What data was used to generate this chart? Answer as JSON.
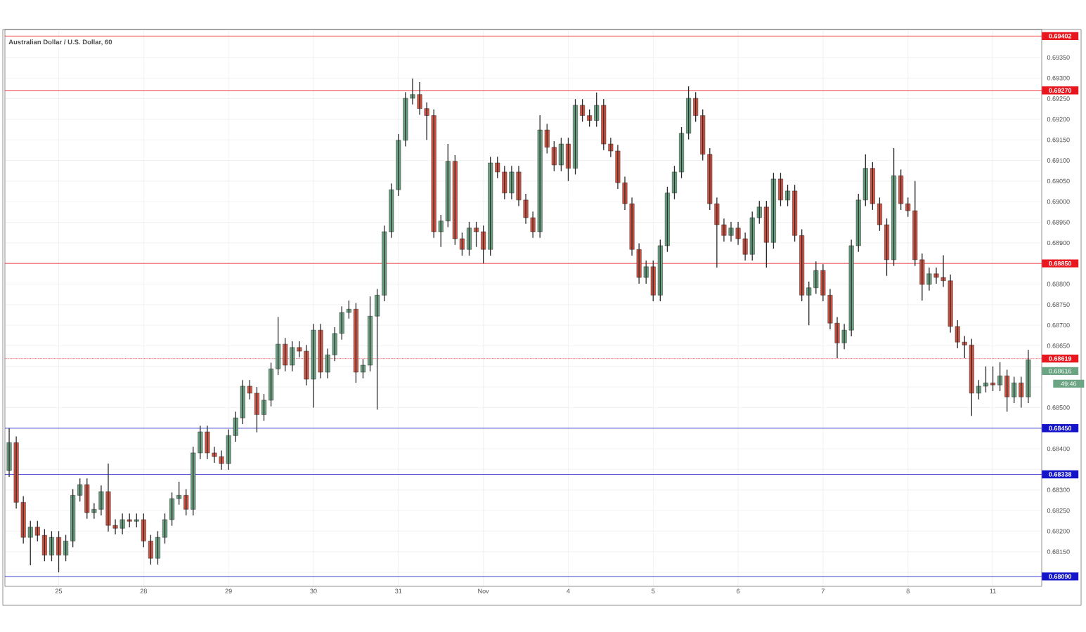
{
  "chart_data": {
    "type": "candlestick",
    "title": "Australian Dollar / U.S. Dollar, 60",
    "categories": [
      null,
      null,
      null,
      null,
      null,
      null,
      null,
      "25",
      null,
      null,
      null,
      null,
      null,
      null,
      null,
      null,
      null,
      null,
      null,
      "28",
      null,
      null,
      null,
      null,
      null,
      null,
      null,
      null,
      null,
      null,
      null,
      "29",
      null,
      null,
      null,
      null,
      null,
      null,
      null,
      null,
      null,
      null,
      null,
      "30",
      null,
      null,
      null,
      null,
      null,
      null,
      null,
      null,
      null,
      null,
      null,
      "31",
      null,
      null,
      null,
      null,
      null,
      null,
      null,
      null,
      null,
      null,
      null,
      "Nov",
      null,
      null,
      null,
      null,
      null,
      null,
      null,
      null,
      null,
      null,
      null,
      "4",
      null,
      null,
      null,
      null,
      null,
      null,
      null,
      null,
      null,
      null,
      null,
      "5",
      null,
      null,
      null,
      null,
      null,
      null,
      null,
      null,
      null,
      null,
      null,
      "6",
      null,
      null,
      null,
      null,
      null,
      null,
      null,
      null,
      null,
      null,
      null,
      "7",
      null,
      null,
      null,
      null,
      null,
      null,
      null,
      null,
      null,
      null,
      null,
      "8",
      null,
      null,
      null,
      null,
      null,
      null,
      null,
      null,
      null,
      null,
      null,
      "11",
      null,
      null,
      null,
      null,
      null
    ],
    "ohlc": [
      [
        0.68347,
        0.6845,
        0.68332,
        0.68415
      ],
      [
        0.68415,
        0.6843,
        0.68255,
        0.6827
      ],
      [
        0.6827,
        0.68285,
        0.6817,
        0.68185
      ],
      [
        0.68185,
        0.68225,
        0.68117,
        0.6821
      ],
      [
        0.6821,
        0.68225,
        0.68175,
        0.6819
      ],
      [
        0.6819,
        0.68205,
        0.68127,
        0.68142
      ],
      [
        0.68142,
        0.682,
        0.68127,
        0.68185
      ],
      [
        0.68185,
        0.682,
        0.681,
        0.68142
      ],
      [
        0.68142,
        0.68191,
        0.68127,
        0.68176
      ],
      [
        0.68176,
        0.68302,
        0.68161,
        0.68287
      ],
      [
        0.68287,
        0.68328,
        0.68272,
        0.68313
      ],
      [
        0.68313,
        0.68328,
        0.6823,
        0.68245
      ],
      [
        0.68245,
        0.68268,
        0.6823,
        0.68253
      ],
      [
        0.68253,
        0.68311,
        0.68238,
        0.68296
      ],
      [
        0.68296,
        0.68364,
        0.68199,
        0.68214
      ],
      [
        0.68214,
        0.68229,
        0.68192,
        0.68207
      ],
      [
        0.68207,
        0.68243,
        0.68192,
        0.68228
      ],
      [
        0.68228,
        0.68243,
        0.68209,
        0.68224
      ],
      [
        0.68224,
        0.68243,
        0.68209,
        0.68228
      ],
      [
        0.68228,
        0.68243,
        0.68161,
        0.68176
      ],
      [
        0.68176,
        0.68191,
        0.68119,
        0.68134
      ],
      [
        0.68134,
        0.682,
        0.68119,
        0.68185
      ],
      [
        0.68185,
        0.68243,
        0.6817,
        0.68228
      ],
      [
        0.68228,
        0.68294,
        0.68213,
        0.68279
      ],
      [
        0.68279,
        0.6832,
        0.68264,
        0.68287
      ],
      [
        0.68287,
        0.68302,
        0.68238,
        0.68253
      ],
      [
        0.68253,
        0.68405,
        0.68238,
        0.6839
      ],
      [
        0.6839,
        0.68456,
        0.68375,
        0.68441
      ],
      [
        0.68441,
        0.68456,
        0.68375,
        0.6839
      ],
      [
        0.6839,
        0.68405,
        0.68366,
        0.68381
      ],
      [
        0.68381,
        0.68396,
        0.68349,
        0.68364
      ],
      [
        0.68364,
        0.68447,
        0.68349,
        0.68432
      ],
      [
        0.68432,
        0.6849,
        0.68417,
        0.68475
      ],
      [
        0.68475,
        0.68567,
        0.6846,
        0.68552
      ],
      [
        0.68552,
        0.68567,
        0.6852,
        0.68535
      ],
      [
        0.68535,
        0.6855,
        0.6844,
        0.68483
      ],
      [
        0.68483,
        0.68533,
        0.68468,
        0.68518
      ],
      [
        0.68518,
        0.68609,
        0.68503,
        0.68594
      ],
      [
        0.68594,
        0.6872,
        0.68579,
        0.68654
      ],
      [
        0.68654,
        0.68669,
        0.68588,
        0.68603
      ],
      [
        0.68603,
        0.68661,
        0.68588,
        0.68646
      ],
      [
        0.68646,
        0.68661,
        0.68622,
        0.68637
      ],
      [
        0.68637,
        0.68652,
        0.68554,
        0.68569
      ],
      [
        0.68569,
        0.68703,
        0.685,
        0.68688
      ],
      [
        0.68688,
        0.68703,
        0.68571,
        0.68586
      ],
      [
        0.68586,
        0.68643,
        0.68571,
        0.68628
      ],
      [
        0.68628,
        0.68695,
        0.68613,
        0.6868
      ],
      [
        0.6868,
        0.68746,
        0.68665,
        0.68731
      ],
      [
        0.68731,
        0.6876,
        0.68716,
        0.68739
      ],
      [
        0.68739,
        0.68754,
        0.6856,
        0.68586
      ],
      [
        0.68586,
        0.68618,
        0.68571,
        0.68603
      ],
      [
        0.68603,
        0.6877,
        0.68588,
        0.68722
      ],
      [
        0.68722,
        0.68788,
        0.68495,
        0.68773
      ],
      [
        0.68773,
        0.68942,
        0.68758,
        0.68927
      ],
      [
        0.68927,
        0.69044,
        0.68912,
        0.69029
      ],
      [
        0.69029,
        0.69164,
        0.69014,
        0.69149
      ],
      [
        0.69149,
        0.69266,
        0.69134,
        0.69251
      ],
      [
        0.69251,
        0.69299,
        0.69236,
        0.6926
      ],
      [
        0.6926,
        0.6929,
        0.69211,
        0.69226
      ],
      [
        0.69226,
        0.69241,
        0.6915,
        0.69209
      ],
      [
        0.69209,
        0.69224,
        0.68912,
        0.68927
      ],
      [
        0.68927,
        0.68968,
        0.6889,
        0.68953
      ],
      [
        0.68953,
        0.6914,
        0.68938,
        0.69098
      ],
      [
        0.69098,
        0.69113,
        0.68895,
        0.6891
      ],
      [
        0.6891,
        0.68925,
        0.68869,
        0.68884
      ],
      [
        0.68884,
        0.68951,
        0.68869,
        0.68936
      ],
      [
        0.68936,
        0.68951,
        0.6889,
        0.68927
      ],
      [
        0.68927,
        0.68942,
        0.6885,
        0.68884
      ],
      [
        0.68884,
        0.69109,
        0.68869,
        0.69094
      ],
      [
        0.69094,
        0.69109,
        0.69057,
        0.69072
      ],
      [
        0.69072,
        0.69087,
        0.69006,
        0.69021
      ],
      [
        0.69021,
        0.69087,
        0.69006,
        0.69072
      ],
      [
        0.69072,
        0.69087,
        0.68989,
        0.69004
      ],
      [
        0.69004,
        0.69019,
        0.68946,
        0.68961
      ],
      [
        0.68961,
        0.68976,
        0.68912,
        0.68927
      ],
      [
        0.68927,
        0.6921,
        0.68912,
        0.69174
      ],
      [
        0.69174,
        0.69189,
        0.69117,
        0.69132
      ],
      [
        0.69132,
        0.69147,
        0.69074,
        0.69089
      ],
      [
        0.69089,
        0.69155,
        0.69074,
        0.6914
      ],
      [
        0.6914,
        0.69155,
        0.6905,
        0.69081
      ],
      [
        0.69081,
        0.69249,
        0.69066,
        0.69234
      ],
      [
        0.69234,
        0.69249,
        0.69194,
        0.69209
      ],
      [
        0.69209,
        0.69224,
        0.69182,
        0.69197
      ],
      [
        0.69197,
        0.69265,
        0.69182,
        0.69234
      ],
      [
        0.69234,
        0.69249,
        0.69125,
        0.6914
      ],
      [
        0.6914,
        0.69155,
        0.69108,
        0.69123
      ],
      [
        0.69123,
        0.69138,
        0.69031,
        0.69046
      ],
      [
        0.69046,
        0.69061,
        0.6898,
        0.68995
      ],
      [
        0.68995,
        0.6901,
        0.68869,
        0.68884
      ],
      [
        0.68884,
        0.68899,
        0.68801,
        0.68816
      ],
      [
        0.68816,
        0.68857,
        0.68801,
        0.68842
      ],
      [
        0.68842,
        0.68857,
        0.68758,
        0.68773
      ],
      [
        0.68773,
        0.68908,
        0.68758,
        0.68893
      ],
      [
        0.68893,
        0.69036,
        0.68878,
        0.69021
      ],
      [
        0.69021,
        0.69087,
        0.69006,
        0.69072
      ],
      [
        0.69072,
        0.69181,
        0.69057,
        0.69166
      ],
      [
        0.69166,
        0.6928,
        0.69151,
        0.69251
      ],
      [
        0.69251,
        0.69266,
        0.69194,
        0.69209
      ],
      [
        0.69209,
        0.69224,
        0.691,
        0.69115
      ],
      [
        0.69115,
        0.6913,
        0.6898,
        0.68995
      ],
      [
        0.68995,
        0.6901,
        0.6884,
        0.68944
      ],
      [
        0.68944,
        0.68959,
        0.68903,
        0.68918
      ],
      [
        0.68918,
        0.68951,
        0.68903,
        0.68936
      ],
      [
        0.68936,
        0.68951,
        0.68895,
        0.6891
      ],
      [
        0.6891,
        0.68925,
        0.68857,
        0.68872
      ],
      [
        0.68872,
        0.68976,
        0.68857,
        0.68961
      ],
      [
        0.68961,
        0.69002,
        0.68946,
        0.68987
      ],
      [
        0.68987,
        0.69002,
        0.6884,
        0.68901
      ],
      [
        0.68901,
        0.6907,
        0.68886,
        0.69055
      ],
      [
        0.69055,
        0.6907,
        0.68989,
        0.69004
      ],
      [
        0.69004,
        0.69041,
        0.68989,
        0.69026
      ],
      [
        0.69026,
        0.69041,
        0.68903,
        0.68918
      ],
      [
        0.68918,
        0.68933,
        0.68758,
        0.68773
      ],
      [
        0.68773,
        0.68806,
        0.687,
        0.68791
      ],
      [
        0.68791,
        0.68855,
        0.68776,
        0.68833
      ],
      [
        0.68833,
        0.68848,
        0.68758,
        0.68773
      ],
      [
        0.68773,
        0.68788,
        0.6869,
        0.68705
      ],
      [
        0.68705,
        0.6872,
        0.6862,
        0.68657
      ],
      [
        0.68657,
        0.68703,
        0.68642,
        0.68688
      ],
      [
        0.68688,
        0.68908,
        0.68673,
        0.68893
      ],
      [
        0.68893,
        0.69019,
        0.68878,
        0.69004
      ],
      [
        0.69004,
        0.69115,
        0.68989,
        0.69081
      ],
      [
        0.69081,
        0.69096,
        0.6898,
        0.68995
      ],
      [
        0.68995,
        0.6901,
        0.68929,
        0.68944
      ],
      [
        0.68944,
        0.68959,
        0.6882,
        0.68859
      ],
      [
        0.68859,
        0.6913,
        0.68844,
        0.69063
      ],
      [
        0.69063,
        0.69078,
        0.6898,
        0.68995
      ],
      [
        0.68995,
        0.6901,
        0.68963,
        0.68978
      ],
      [
        0.68978,
        0.6905,
        0.68844,
        0.68859
      ],
      [
        0.68859,
        0.68874,
        0.6876,
        0.68799
      ],
      [
        0.68799,
        0.6884,
        0.68784,
        0.68825
      ],
      [
        0.68825,
        0.6884,
        0.68801,
        0.68816
      ],
      [
        0.68816,
        0.6887,
        0.68793,
        0.68808
      ],
      [
        0.68808,
        0.68823,
        0.68682,
        0.68697
      ],
      [
        0.68697,
        0.68712,
        0.68644,
        0.68659
      ],
      [
        0.68659,
        0.68674,
        0.6862,
        0.68652
      ],
      [
        0.68652,
        0.68667,
        0.6848,
        0.68535
      ],
      [
        0.68535,
        0.68567,
        0.6852,
        0.68552
      ],
      [
        0.68552,
        0.686,
        0.68537,
        0.6856
      ],
      [
        0.6856,
        0.686,
        0.6854,
        0.68555
      ],
      [
        0.68555,
        0.6861,
        0.6854,
        0.68577
      ],
      [
        0.68577,
        0.68592,
        0.6849,
        0.68526
      ],
      [
        0.68526,
        0.68575,
        0.68511,
        0.6856
      ],
      [
        0.6856,
        0.68575,
        0.685,
        0.68526
      ],
      [
        0.68526,
        0.6864,
        0.68511,
        0.68616
      ]
    ],
    "ylim": [
      0.68066,
      0.69418
    ],
    "yticks": [
      {
        "value": 0.681,
        "label": null
      },
      {
        "value": 0.6815,
        "label": "0.68150"
      },
      {
        "value": 0.682,
        "label": "0.68200"
      },
      {
        "value": 0.6825,
        "label": "0.68250"
      },
      {
        "value": 0.683,
        "label": "0.68300"
      },
      {
        "value": 0.6835,
        "label": null
      },
      {
        "value": 0.684,
        "label": "0.68400"
      },
      {
        "value": 0.6845,
        "label": null
      },
      {
        "value": 0.685,
        "label": "0.68500"
      },
      {
        "value": 0.6855,
        "label": null
      },
      {
        "value": 0.686,
        "label": null
      },
      {
        "value": 0.6865,
        "label": "0.68650"
      },
      {
        "value": 0.687,
        "label": "0.68700"
      },
      {
        "value": 0.6875,
        "label": "0.68750"
      },
      {
        "value": 0.688,
        "label": "0.68800"
      },
      {
        "value": 0.6885,
        "label": null
      },
      {
        "value": 0.689,
        "label": "0.68900"
      },
      {
        "value": 0.6895,
        "label": "0.68950"
      },
      {
        "value": 0.69,
        "label": "0.69000"
      },
      {
        "value": 0.6905,
        "label": "0.69050"
      },
      {
        "value": 0.691,
        "label": "0.69100"
      },
      {
        "value": 0.6915,
        "label": "0.69150"
      },
      {
        "value": 0.692,
        "label": "0.69200"
      },
      {
        "value": 0.6925,
        "label": "0.69250"
      },
      {
        "value": 0.693,
        "label": "0.69300"
      },
      {
        "value": 0.6935,
        "label": "0.69350"
      }
    ],
    "ref_lines": [
      {
        "axis": "y",
        "value": 0.69402,
        "label": "0.69402",
        "color": "#e8161e"
      },
      {
        "axis": "y",
        "value": 0.6927,
        "label": "0.69270",
        "color": "#e8161e"
      },
      {
        "axis": "y",
        "value": 0.6885,
        "label": "0.68850",
        "color": "#e8161e"
      },
      {
        "axis": "y",
        "value": 0.68619,
        "label": "0.68619",
        "color": "#e8161e",
        "line_style": "dotted"
      },
      {
        "axis": "y",
        "value": 0.6845,
        "label": "0.68450",
        "color": "#1414c8"
      },
      {
        "axis": "y",
        "value": 0.68338,
        "label": "0.68338",
        "color": "#1414c8"
      },
      {
        "axis": "y",
        "value": 0.6809,
        "label": "0.68090",
        "color": "#1414c8"
      }
    ],
    "annotations": [
      "0.68616",
      "49:46"
    ],
    "grid": true
  }
}
